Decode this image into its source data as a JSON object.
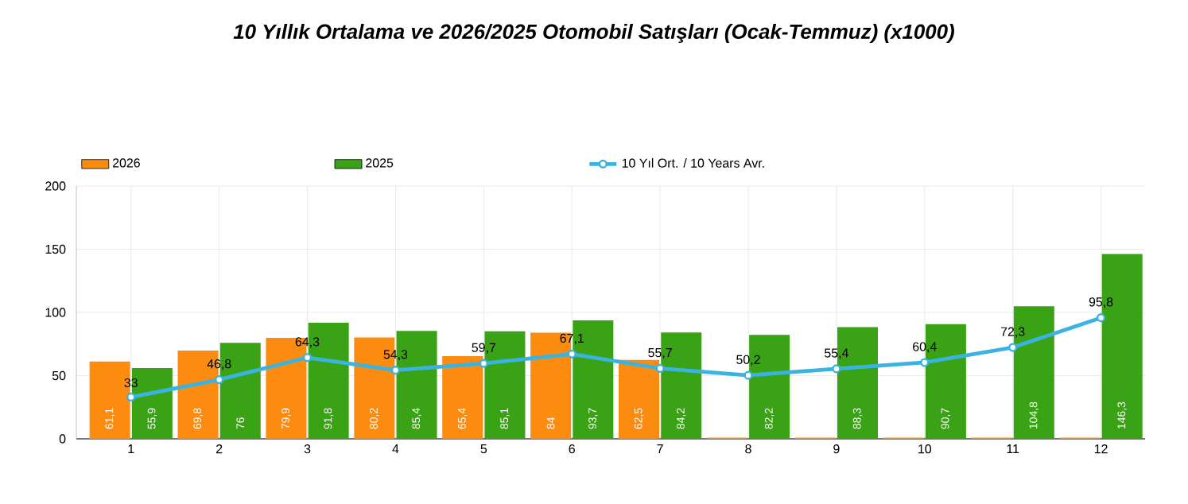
{
  "chart_data": {
    "type": "bar",
    "title": "10 Yıllık Ortalama ve 2026/2025 Otomobil Satışları (Ocak-Temmuz) (x1000)",
    "categories": [
      "1",
      "2",
      "3",
      "4",
      "5",
      "6",
      "7",
      "8",
      "9",
      "10",
      "11",
      "12"
    ],
    "series": [
      {
        "name": "2026",
        "color": "#fb8c0f",
        "values": [
          61.1,
          69.8,
          79.9,
          80.2,
          65.4,
          84,
          62.5,
          1,
          1,
          1,
          1,
          1
        ],
        "value_labels": [
          "61,1",
          "69,8",
          "79,9",
          "80,2",
          "65,4",
          "84",
          "62,5",
          null,
          null,
          null,
          null,
          null
        ]
      },
      {
        "name": "2025",
        "color": "#3aa315",
        "values": [
          55.9,
          76,
          91.8,
          85.4,
          85.1,
          93.7,
          84.2,
          82.2,
          88.3,
          90.7,
          104.8,
          146.3
        ],
        "value_labels": [
          "55,9",
          "76",
          "91,8",
          "85,4",
          "85,1",
          "93,7",
          "84,2",
          "82,2",
          "88,3",
          "90,7",
          "104,8",
          "146,3"
        ]
      },
      {
        "name": "10 Yıl Ort. / 10 Years Avr.",
        "type": "line",
        "color": "#3bb3e0",
        "marker": "circle",
        "values": [
          33,
          46.8,
          64.3,
          54.3,
          59.7,
          67.1,
          55.7,
          50.2,
          55.4,
          60.4,
          72.3,
          95.8
        ],
        "value_labels": [
          "33",
          "46,8",
          "64,3",
          "54,3",
          "59,7",
          "67,1",
          "55,7",
          "50,2",
          "55,4",
          "60,4",
          "72,3",
          "95,8"
        ]
      }
    ],
    "ylim": [
      0,
      200
    ],
    "yticks": [
      0,
      50,
      100,
      150,
      200
    ],
    "grid": true,
    "legend": "top"
  }
}
